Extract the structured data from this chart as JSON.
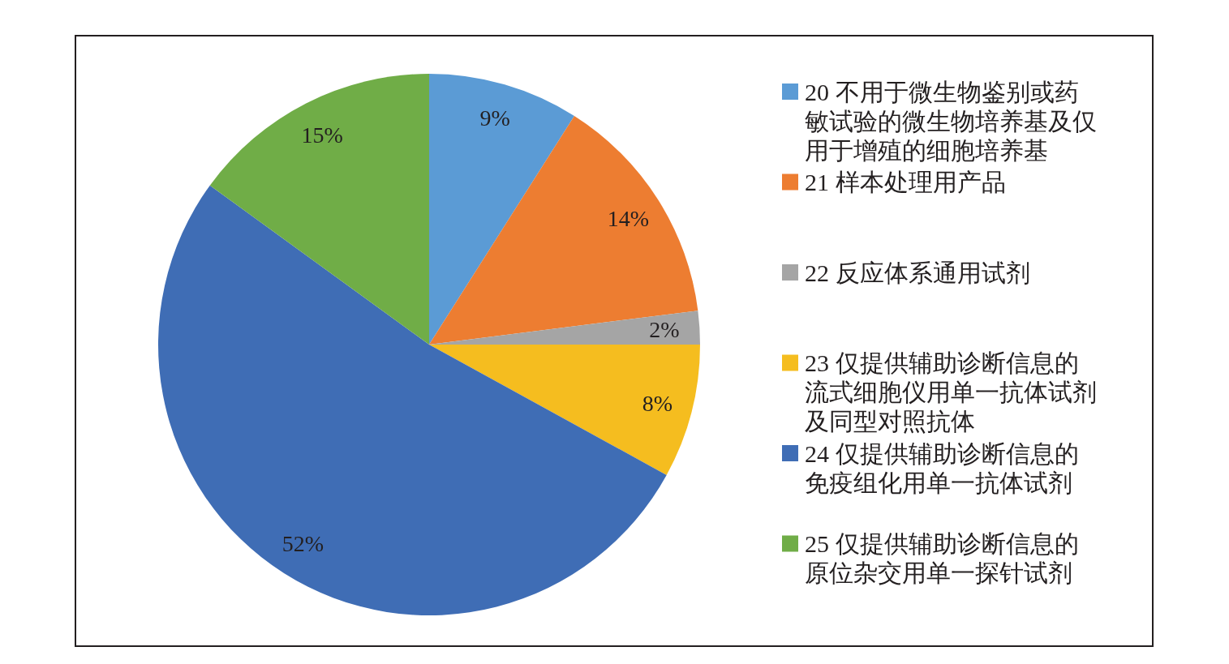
{
  "chart_data": {
    "type": "pie",
    "categories": [
      "20 不用于微生物鉴别或药敏试验的微生物培养基及仅用于增殖的细胞培养基",
      "21 样本处理用产品",
      "22 反应体系通用试剂",
      "23 仅提供辅助诊断信息的流式细胞仪用单一抗体试剂及同型对照抗体",
      "24 仅提供辅助诊断信息的免疫组化用单一抗体试剂",
      "25 仅提供辅助诊断信息的原位杂交用单一探针试剂"
    ],
    "values": [
      9,
      14,
      2,
      8,
      52,
      15
    ],
    "colors": [
      "#5b9bd5",
      "#ed7d31",
      "#a5a5a5",
      "#f5bd1f",
      "#3f6db5",
      "#70ad47"
    ],
    "value_labels": [
      "9%",
      "14%",
      "2%",
      "8%",
      "52%",
      "15%"
    ],
    "legend": "right"
  }
}
